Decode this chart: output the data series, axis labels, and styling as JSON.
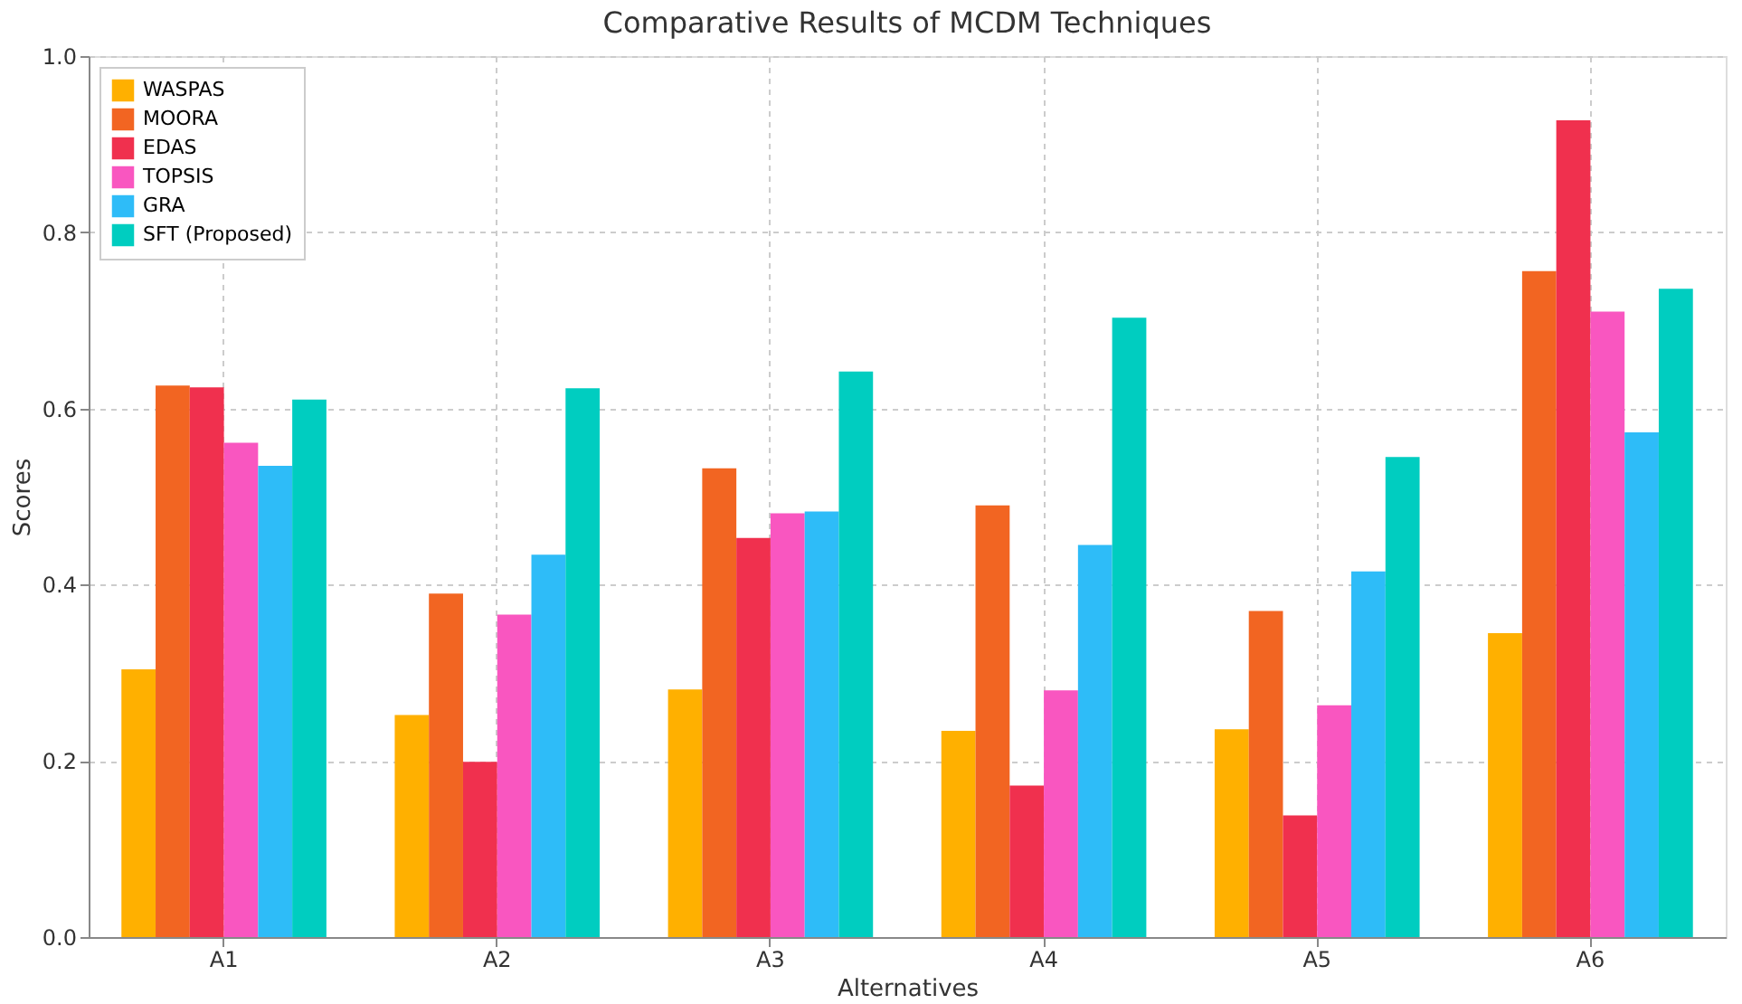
{
  "chart_data": {
    "type": "bar",
    "title": "Comparative Results of MCDM Techniques",
    "xlabel": "Alternatives",
    "ylabel": "Scores",
    "categories": [
      "A1",
      "A2",
      "A3",
      "A4",
      "A5",
      "A6"
    ],
    "series": [
      {
        "name": "WASPAS",
        "color": "#ffb000",
        "values": [
          0.304,
          0.252,
          0.281,
          0.234,
          0.236,
          0.345
        ]
      },
      {
        "name": "MOORA",
        "color": "#f26522",
        "values": [
          0.626,
          0.39,
          0.532,
          0.49,
          0.37,
          0.756
        ]
      },
      {
        "name": "EDAS",
        "color": "#f0304e",
        "values": [
          0.624,
          0.199,
          0.453,
          0.172,
          0.138,
          0.927
        ]
      },
      {
        "name": "TOPSIS",
        "color": "#f956c0",
        "values": [
          0.561,
          0.366,
          0.481,
          0.28,
          0.263,
          0.71
        ]
      },
      {
        "name": "GRA",
        "color": "#2ebcf8",
        "values": [
          0.535,
          0.434,
          0.483,
          0.445,
          0.415,
          0.573
        ]
      },
      {
        "name": "SFT (Proposed)",
        "color": "#00cdc0",
        "values": [
          0.61,
          0.623,
          0.642,
          0.703,
          0.545,
          0.736
        ]
      }
    ],
    "ylim": [
      0,
      1.0
    ],
    "yticks": [
      {
        "value": 0,
        "label": "0.0"
      },
      0.2,
      0.4,
      0.6,
      0.8,
      {
        "value": 1,
        "label": "1.0"
      }
    ],
    "grid": true,
    "legend": "top left"
  }
}
